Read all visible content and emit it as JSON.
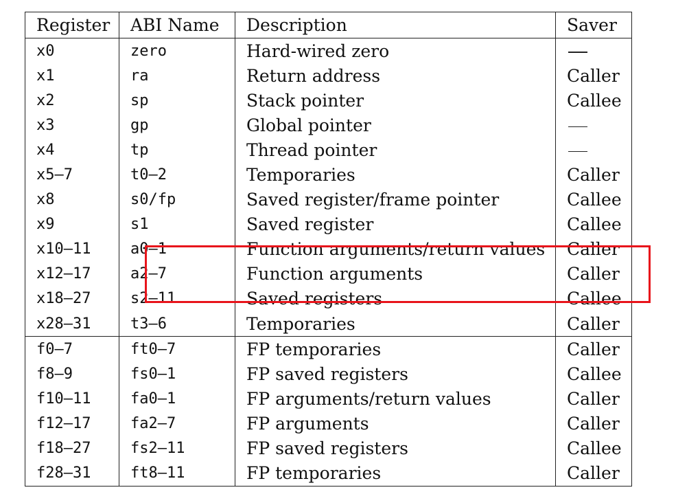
{
  "headers": {
    "register": "Register",
    "abi_name": "ABI Name",
    "description": "Description",
    "saver": "Saver"
  },
  "integer_rows": [
    {
      "register": "x0",
      "abi": "zero",
      "description": "Hard-wired zero",
      "saver": "—"
    },
    {
      "register": "x1",
      "abi": "ra",
      "description": "Return address",
      "saver": "Caller"
    },
    {
      "register": "x2",
      "abi": "sp",
      "description": "Stack pointer",
      "saver": "Callee"
    },
    {
      "register": "x3",
      "abi": "gp",
      "description": "Global pointer",
      "saver": "—"
    },
    {
      "register": "x4",
      "abi": "tp",
      "description": "Thread pointer",
      "saver": "—"
    },
    {
      "register": "x5–7",
      "abi": "t0–2",
      "description": "Temporaries",
      "saver": "Caller"
    },
    {
      "register": "x8",
      "abi": "s0/fp",
      "description": "Saved register/frame pointer",
      "saver": "Callee"
    },
    {
      "register": "x9",
      "abi": "s1",
      "description": "Saved register",
      "saver": "Callee"
    },
    {
      "register": "x10–11",
      "abi": "a0–1",
      "description": "Function arguments/return values",
      "saver": "Caller"
    },
    {
      "register": "x12–17",
      "abi": "a2–7",
      "description": "Function arguments",
      "saver": "Caller"
    },
    {
      "register": "x18–27",
      "abi": "s2–11",
      "description": "Saved registers",
      "saver": "Callee"
    },
    {
      "register": "x28–31",
      "abi": "t3–6",
      "description": "Temporaries",
      "saver": "Caller"
    }
  ],
  "fp_rows": [
    {
      "register": "f0–7",
      "abi": "ft0–7",
      "description": "FP temporaries",
      "saver": "Caller"
    },
    {
      "register": "f8–9",
      "abi": "fs0–1",
      "description": "FP saved registers",
      "saver": "Callee"
    },
    {
      "register": "f10–11",
      "abi": "fa0–1",
      "description": "FP arguments/return values",
      "saver": "Caller"
    },
    {
      "register": "f12–17",
      "abi": "fa2–7",
      "description": "FP arguments",
      "saver": "Caller"
    },
    {
      "register": "f18–27",
      "abi": "fs2–11",
      "description": "FP saved registers",
      "saver": "Callee"
    },
    {
      "register": "f28–31",
      "abi": "ft8–11",
      "description": "FP temporaries",
      "saver": "Caller"
    }
  ],
  "highlight": {
    "color": "#e8141b",
    "rows": [
      "x10–11",
      "x12–17"
    ]
  }
}
